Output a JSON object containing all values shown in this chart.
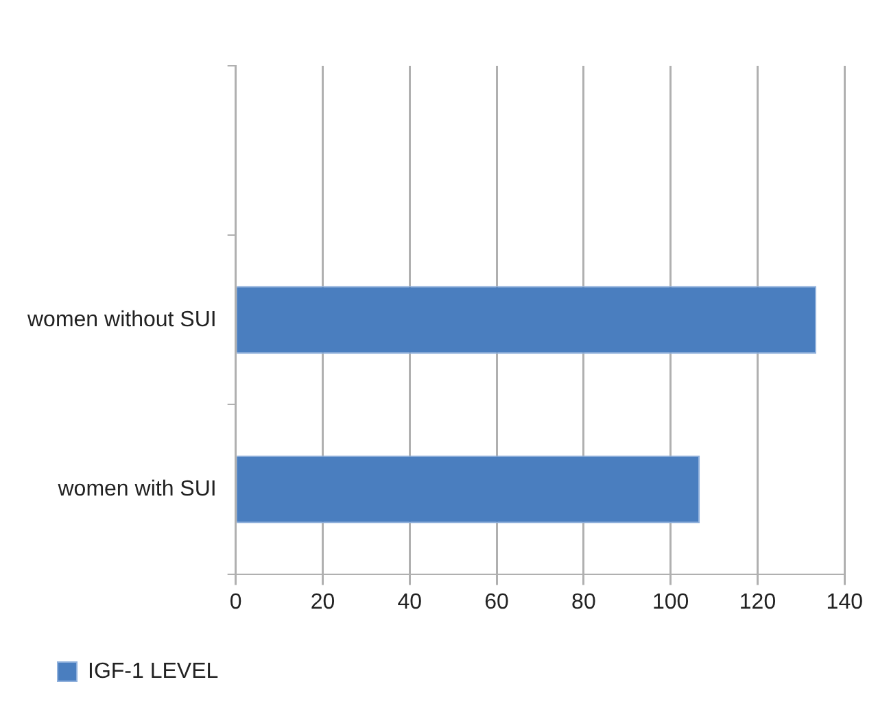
{
  "chart_data": {
    "type": "bar",
    "orientation": "horizontal",
    "categories": [
      null,
      "women without SUI",
      "women with SUI"
    ],
    "series": [
      {
        "name": "IGF-1 LEVEL",
        "color": "#4a7ebf",
        "values": [
          null,
          133.5,
          106.7
        ]
      }
    ],
    "xlim": [
      0,
      140
    ],
    "xticks": [
      0,
      20,
      40,
      60,
      80,
      100,
      120,
      140
    ],
    "grid": "x",
    "legend": "bottom left"
  }
}
